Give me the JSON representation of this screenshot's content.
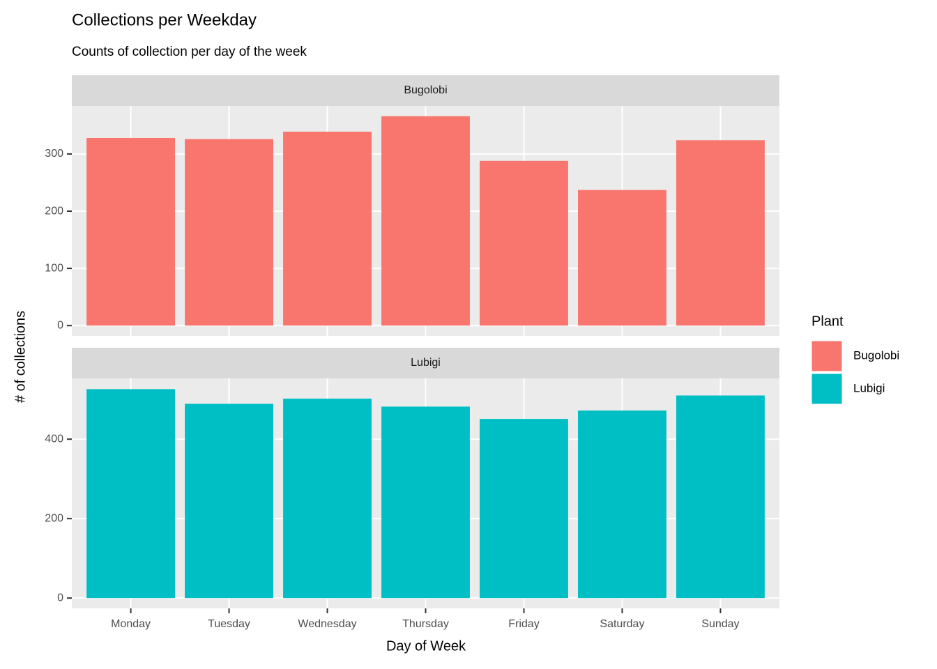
{
  "chart_data": {
    "type": "bar",
    "title": "Collections per Weekday",
    "subtitle": "Counts of collection per day of the week",
    "x_label": "Day of Week",
    "y_label": "# of collections",
    "legend_title": "Plant",
    "categories": [
      "Monday",
      "Tuesday",
      "Wednesday",
      "Thursday",
      "Friday",
      "Saturday",
      "Sunday"
    ],
    "series": [
      {
        "name": "Bugolobi",
        "color": "#f8766d",
        "values": [
          328,
          326,
          339,
          366,
          288,
          237,
          324
        ],
        "ylim": [
          -18,
          384
        ],
        "yticks": [
          0,
          100,
          200,
          300
        ]
      },
      {
        "name": "Lubigi",
        "color": "#00bfc4",
        "values": [
          526,
          489,
          502,
          482,
          451,
          472,
          510
        ],
        "ylim": [
          -26,
          553
        ],
        "yticks": [
          0,
          200,
          400
        ]
      }
    ],
    "grid": true
  }
}
